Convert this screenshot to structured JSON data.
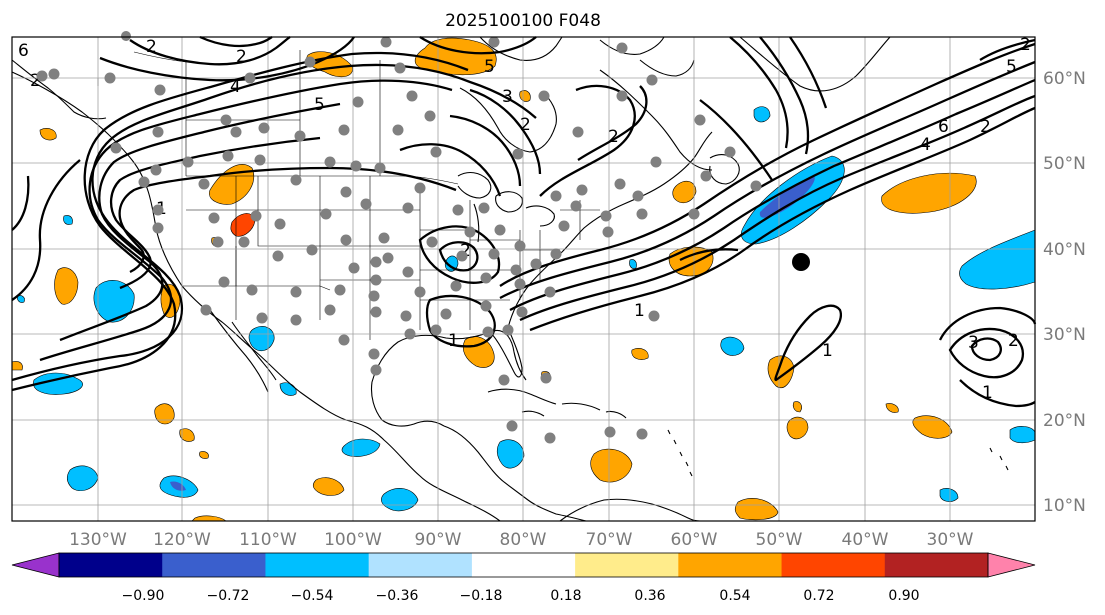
{
  "title": "2025100100 F048",
  "longitude_labels": [
    "130°W",
    "120°W",
    "110°W",
    "100°W",
    "90°W",
    "80°W",
    "70°W",
    "60°W",
    "50°W",
    "40°W",
    "30°W"
  ],
  "latitude_labels": [
    "60°N",
    "50°N",
    "40°N",
    "30°N",
    "20°N",
    "10°N"
  ],
  "colorbar": {
    "labels": [
      "−0.90",
      "−0.72",
      "−0.54",
      "−0.36",
      "−0.18",
      "0.18",
      "0.36",
      "0.54",
      "0.72",
      "0.90"
    ],
    "colors": [
      "#9932cc",
      "#00008b",
      "#3a5fcd",
      "#00bfff",
      "#b0e2ff",
      "#ffffff",
      "#ffec8b",
      "#ffa500",
      "#ff4500",
      "#b22222",
      "#ff82ab"
    ]
  },
  "contour_labels": [
    "2",
    "4",
    "5",
    "6",
    "2",
    "5",
    "3",
    "2",
    "2",
    "2",
    "1",
    "1",
    "1",
    "1",
    "3",
    "2",
    "2",
    "1",
    "4",
    "6",
    "2",
    "5",
    "2"
  ],
  "map_colors": {
    "orange": "#ffa500",
    "light_orange": "#ffa500",
    "red": "#ff4500",
    "cyan": "#00bfff",
    "blue": "#3a5fcd",
    "station": "#808080"
  }
}
